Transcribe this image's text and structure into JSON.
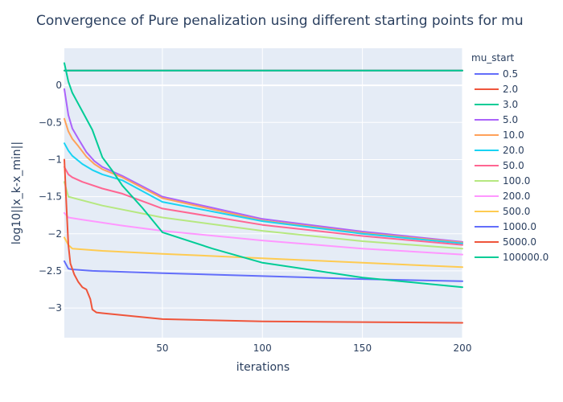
{
  "chart_data": {
    "type": "line",
    "title": "Convergence of Pure penalization using different starting points for mu",
    "xlabel": "iterations",
    "ylabel": "log10||x_k-x_min||",
    "xlim": [
      1,
      200
    ],
    "ylim": [
      -3.4,
      0.5
    ],
    "x_ticks": [
      50,
      100,
      150,
      200
    ],
    "y_ticks": [
      0,
      -0.5,
      -1,
      -1.5,
      -2,
      -2.5,
      -3
    ],
    "y_tick_labels": [
      "0",
      "−0.5",
      "−1",
      "−1.5",
      "−2",
      "−2.5",
      "−3"
    ],
    "grid": true,
    "plot_background": "#e5ecf6",
    "legend": {
      "title": "mu_start",
      "position": "right"
    },
    "series": [
      {
        "name": "0.5",
        "color": "#636efa",
        "points": [
          [
            1,
            0.2
          ],
          [
            200,
            0.2
          ]
        ]
      },
      {
        "name": "2.0",
        "color": "#ef553b",
        "points": [
          [
            1,
            0.2
          ],
          [
            200,
            0.2
          ]
        ]
      },
      {
        "name": "3.0",
        "color": "#00cc96",
        "points": [
          [
            1,
            0.2
          ],
          [
            200,
            0.2
          ]
        ]
      },
      {
        "name": "5.0",
        "color": "#ab63fa",
        "points": [
          [
            1,
            -0.05
          ],
          [
            3,
            -0.4
          ],
          [
            5,
            -0.58
          ],
          [
            8,
            -0.72
          ],
          [
            12,
            -0.9
          ],
          [
            16,
            -1.02
          ],
          [
            20,
            -1.1
          ],
          [
            30,
            -1.22
          ],
          [
            50,
            -1.5
          ],
          [
            100,
            -1.8
          ],
          [
            150,
            -1.97
          ],
          [
            200,
            -2.11
          ]
        ]
      },
      {
        "name": "10.0",
        "color": "#ffa15a",
        "points": [
          [
            1,
            -0.45
          ],
          [
            3,
            -0.62
          ],
          [
            5,
            -0.72
          ],
          [
            8,
            -0.82
          ],
          [
            12,
            -0.96
          ],
          [
            16,
            -1.06
          ],
          [
            20,
            -1.13
          ],
          [
            30,
            -1.24
          ],
          [
            50,
            -1.52
          ],
          [
            100,
            -1.82
          ],
          [
            150,
            -1.99
          ],
          [
            200,
            -2.12
          ]
        ]
      },
      {
        "name": "20.0",
        "color": "#19d3f3",
        "points": [
          [
            1,
            -0.78
          ],
          [
            3,
            -0.88
          ],
          [
            5,
            -0.95
          ],
          [
            10,
            -1.06
          ],
          [
            15,
            -1.14
          ],
          [
            20,
            -1.2
          ],
          [
            30,
            -1.28
          ],
          [
            50,
            -1.57
          ],
          [
            100,
            -1.83
          ],
          [
            150,
            -2.0
          ],
          [
            200,
            -2.13
          ]
        ]
      },
      {
        "name": "50.0",
        "color": "#ff6692",
        "points": [
          [
            1,
            -1.1
          ],
          [
            3,
            -1.2
          ],
          [
            5,
            -1.24
          ],
          [
            10,
            -1.3
          ],
          [
            20,
            -1.39
          ],
          [
            30,
            -1.46
          ],
          [
            50,
            -1.66
          ],
          [
            100,
            -1.88
          ],
          [
            150,
            -2.03
          ],
          [
            200,
            -2.15
          ]
        ]
      },
      {
        "name": "100.0",
        "color": "#b6e880",
        "points": [
          [
            1,
            -1.3
          ],
          [
            3,
            -1.5
          ],
          [
            10,
            -1.55
          ],
          [
            20,
            -1.62
          ],
          [
            50,
            -1.78
          ],
          [
            100,
            -1.96
          ],
          [
            150,
            -2.1
          ],
          [
            200,
            -2.2
          ]
        ]
      },
      {
        "name": "200.0",
        "color": "#ff97ff",
        "points": [
          [
            1,
            -1.72
          ],
          [
            3,
            -1.78
          ],
          [
            10,
            -1.81
          ],
          [
            30,
            -1.89
          ],
          [
            50,
            -1.96
          ],
          [
            100,
            -2.09
          ],
          [
            150,
            -2.2
          ],
          [
            200,
            -2.28
          ]
        ]
      },
      {
        "name": "500.0",
        "color": "#fecb52",
        "points": [
          [
            1,
            -2.05
          ],
          [
            3,
            -2.15
          ],
          [
            5,
            -2.2
          ],
          [
            20,
            -2.23
          ],
          [
            50,
            -2.27
          ],
          [
            100,
            -2.33
          ],
          [
            150,
            -2.39
          ],
          [
            200,
            -2.45
          ]
        ]
      },
      {
        "name": "1000.0",
        "color": "#636efa",
        "points": [
          [
            1,
            -2.37
          ],
          [
            3,
            -2.47
          ],
          [
            5,
            -2.48
          ],
          [
            15,
            -2.5
          ],
          [
            50,
            -2.53
          ],
          [
            100,
            -2.57
          ],
          [
            150,
            -2.61
          ],
          [
            200,
            -2.64
          ]
        ]
      },
      {
        "name": "5000.0",
        "color": "#ef553b",
        "points": [
          [
            1,
            -1.0
          ],
          [
            2,
            -1.6
          ],
          [
            3,
            -2.15
          ],
          [
            4,
            -2.4
          ],
          [
            6,
            -2.55
          ],
          [
            8,
            -2.65
          ],
          [
            10,
            -2.72
          ],
          [
            12,
            -2.75
          ],
          [
            14,
            -2.88
          ],
          [
            15,
            -3.02
          ],
          [
            17,
            -3.06
          ],
          [
            20,
            -3.07
          ],
          [
            50,
            -3.15
          ],
          [
            100,
            -3.18
          ],
          [
            150,
            -3.19
          ],
          [
            200,
            -3.2
          ]
        ]
      },
      {
        "name": "100000.0",
        "color": "#00cc96",
        "points": [
          [
            1,
            0.3
          ],
          [
            3,
            0.05
          ],
          [
            5,
            -0.1
          ],
          [
            10,
            -0.35
          ],
          [
            15,
            -0.6
          ],
          [
            20,
            -0.97
          ],
          [
            25,
            -1.15
          ],
          [
            30,
            -1.35
          ],
          [
            40,
            -1.65
          ],
          [
            50,
            -1.98
          ],
          [
            75,
            -2.2
          ],
          [
            100,
            -2.39
          ],
          [
            150,
            -2.59
          ],
          [
            200,
            -2.72
          ]
        ]
      }
    ]
  }
}
